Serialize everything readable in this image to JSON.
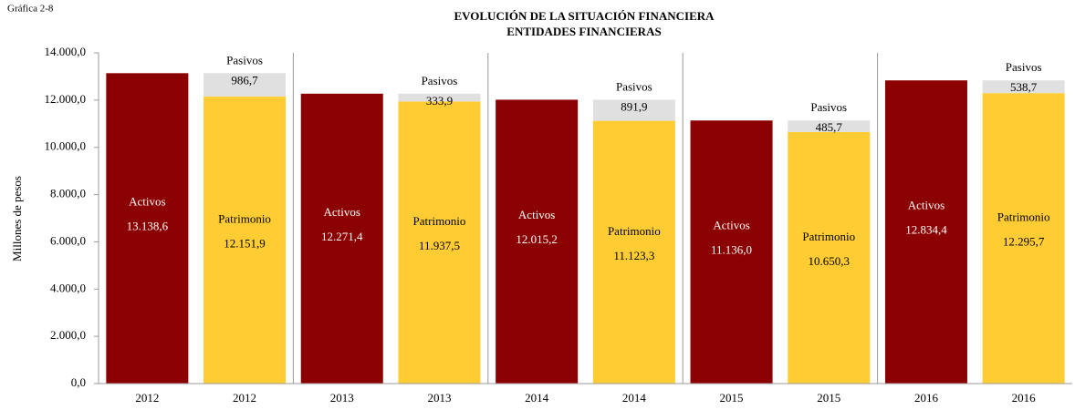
{
  "chart_data": {
    "type": "stacked-bar",
    "figure_label": "Gráfica 2-8",
    "title": "EVOLUCIÓN  DE LA SITUACIÓN  FINANCIERA",
    "subtitle": "ENTIDADES FINANCIERAS",
    "y_label": "Millones  de pesos",
    "categories": [
      "2012",
      "2012",
      "2013",
      "2013",
      "2014",
      "2014",
      "2015",
      "2015",
      "2016",
      "2016"
    ],
    "series": [
      {
        "name": "Activos",
        "color": "#8b0000",
        "values": [
          13138.6,
          null,
          12271.4,
          null,
          12015.2,
          null,
          11136.0,
          null,
          12834.4,
          null
        ],
        "value_labels": [
          "13.138,6",
          null,
          "12.271,4",
          null,
          "12.015,2",
          null,
          "11.136,0",
          null,
          "12.834,4",
          null
        ]
      },
      {
        "name": "Patrimonio",
        "color": "#ffcd33",
        "values": [
          null,
          12151.9,
          null,
          11937.5,
          null,
          11123.3,
          null,
          10650.3,
          null,
          12295.7
        ],
        "value_labels": [
          null,
          "12.151,9",
          null,
          "11.937,5",
          null,
          "11.123,3",
          null,
          "10.650,3",
          null,
          "12.295,7"
        ]
      },
      {
        "name": "Pasivos",
        "color": "#e0e0e0",
        "values": [
          null,
          986.7,
          null,
          333.9,
          null,
          891.9,
          null,
          485.7,
          null,
          538.7
        ],
        "value_labels": [
          null,
          "986,7",
          null,
          "333,9",
          null,
          "891,9",
          null,
          "485,7",
          null,
          "538,7"
        ]
      }
    ],
    "ylim": [
      0,
      14000
    ],
    "yticks": [
      {
        "value": 0,
        "label": "0,0"
      },
      {
        "value": 2000,
        "label": "2.000,0"
      },
      {
        "value": 4000,
        "label": "4.000,0"
      },
      {
        "value": 6000,
        "label": "6.000,0"
      },
      {
        "value": 8000,
        "label": "8.000,0"
      },
      {
        "value": 10000,
        "label": "10.000,0"
      },
      {
        "value": 12000,
        "label": "12.000,0"
      },
      {
        "value": 14000,
        "label": "14.000,0"
      }
    ],
    "grid": false
  }
}
